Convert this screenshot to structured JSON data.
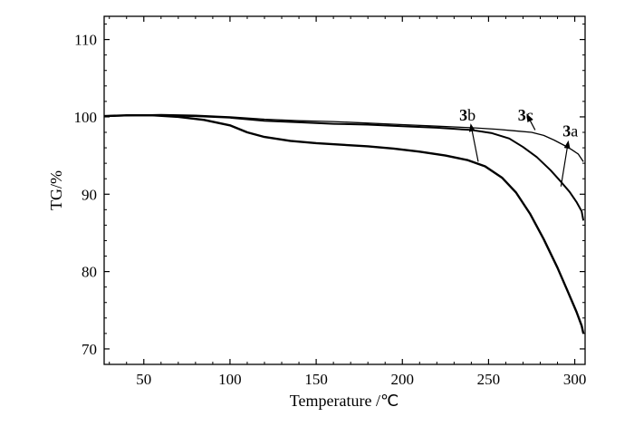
{
  "chart_data": {
    "type": "line",
    "title": "",
    "xlabel": "Temperature /℃",
    "ylabel": "TG/%",
    "xlim": [
      27,
      306
    ],
    "ylim": [
      68,
      113
    ],
    "xticks": [
      50,
      100,
      150,
      200,
      250,
      300
    ],
    "yticks": [
      70,
      80,
      90,
      100,
      110
    ],
    "grid": false,
    "legend": "none",
    "series": [
      {
        "name": "3a",
        "name_bold": "3",
        "name_rest": "a",
        "stroke": "#000000",
        "points": [
          [
            27,
            100.1
          ],
          [
            40,
            100.2
          ],
          [
            60,
            100.3
          ],
          [
            80,
            100.2
          ],
          [
            100,
            100.0
          ],
          [
            120,
            99.7
          ],
          [
            140,
            99.5
          ],
          [
            160,
            99.4
          ],
          [
            180,
            99.2
          ],
          [
            200,
            99.0
          ],
          [
            220,
            98.8
          ],
          [
            240,
            98.6
          ],
          [
            255,
            98.4
          ],
          [
            265,
            98.2
          ],
          [
            275,
            98.0
          ],
          [
            282,
            97.6
          ],
          [
            288,
            97.0
          ],
          [
            294,
            96.3
          ],
          [
            298,
            95.8
          ],
          [
            302,
            95.2
          ],
          [
            305,
            94.2
          ]
        ]
      },
      {
        "name": "3b",
        "name_bold": "3",
        "name_rest": "b",
        "stroke": "#000000",
        "points": [
          [
            27,
            100.1
          ],
          [
            40,
            100.2
          ],
          [
            55,
            100.2
          ],
          [
            70,
            100.0
          ],
          [
            85,
            99.6
          ],
          [
            100,
            98.9
          ],
          [
            110,
            98.0
          ],
          [
            120,
            97.4
          ],
          [
            135,
            96.9
          ],
          [
            150,
            96.6
          ],
          [
            165,
            96.4
          ],
          [
            180,
            96.2
          ],
          [
            195,
            95.9
          ],
          [
            210,
            95.5
          ],
          [
            225,
            95.0
          ],
          [
            238,
            94.4
          ],
          [
            248,
            93.6
          ],
          [
            258,
            92.1
          ],
          [
            266,
            90.2
          ],
          [
            274,
            87.5
          ],
          [
            282,
            84.2
          ],
          [
            290,
            80.5
          ],
          [
            296,
            77.4
          ],
          [
            301,
            74.8
          ],
          [
            304,
            73.0
          ],
          [
            305,
            72.0
          ]
        ]
      },
      {
        "name": "3c",
        "name_bold": "3",
        "name_rest": "c",
        "stroke": "#000000",
        "points": [
          [
            27,
            100.1
          ],
          [
            45,
            100.2
          ],
          [
            60,
            100.2
          ],
          [
            80,
            100.1
          ],
          [
            100,
            99.9
          ],
          [
            120,
            99.5
          ],
          [
            140,
            99.3
          ],
          [
            160,
            99.1
          ],
          [
            180,
            99.0
          ],
          [
            200,
            98.8
          ],
          [
            220,
            98.6
          ],
          [
            240,
            98.3
          ],
          [
            252,
            97.9
          ],
          [
            262,
            97.2
          ],
          [
            270,
            96.1
          ],
          [
            278,
            94.8
          ],
          [
            286,
            93.1
          ],
          [
            292,
            91.6
          ],
          [
            297,
            90.3
          ],
          [
            301,
            89.0
          ],
          [
            304,
            87.8
          ],
          [
            305,
            86.6
          ]
        ]
      }
    ],
    "annotations": [
      {
        "series": "3a",
        "arrow_from": [
          292,
          91.0
        ],
        "arrow_to": [
          296,
          96.5
        ],
        "label_at": [
          293,
          97.5
        ]
      },
      {
        "series": "3b",
        "arrow_from": [
          244,
          94.2
        ],
        "arrow_to": [
          240,
          98.7
        ],
        "label_at": [
          233,
          99.5
        ]
      },
      {
        "series": "3c",
        "arrow_from": [
          277,
          98.3
        ],
        "arrow_to": [
          273,
          100.0
        ],
        "label_at": [
          267,
          99.5
        ]
      }
    ]
  }
}
